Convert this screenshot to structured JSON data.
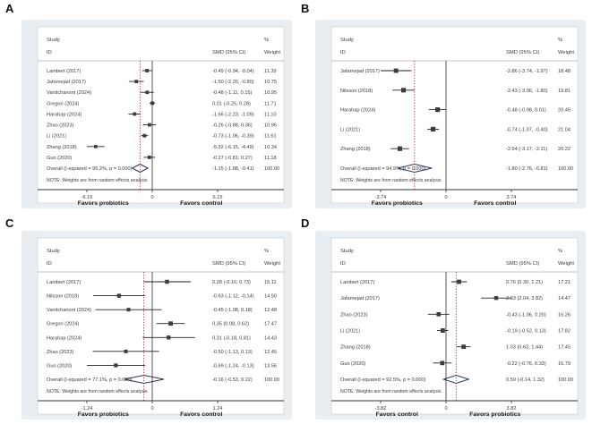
{
  "colors": {
    "panel_bg": "#e9eef2",
    "plot_box_bg": "#ffffff",
    "box_border": "#c9d0d6",
    "axis": "#333333",
    "zero_line": "#444444",
    "ci_line": "#222222",
    "marker": "#3d3d3d",
    "diamond_outline": "#2a3560",
    "overall_dashed_line": "#9f3b3b",
    "text": "#3a3a3a"
  },
  "chart_data": [
    {
      "type": "forest",
      "panel_label": "A",
      "header": {
        "study_line1": "Study",
        "study_line2": "ID",
        "smd_header": "SMD (95% CI)",
        "percent_header": "%",
        "weight_header": "Weight"
      },
      "studies": [
        {
          "id": "Lambert (2017)",
          "smd": -0.49,
          "ci_low": -0.94,
          "ci_high": -0.04,
          "smd_text": "-0.49 (-0.94, -0.04)",
          "weight": "11.39"
        },
        {
          "id": "Jafarnejad (2017)",
          "smd": -1.5,
          "ci_low": -2.2,
          "ci_high": -0.8,
          "smd_text": "-1.50 (-2.20, -0.80)",
          "weight": "10.75"
        },
        {
          "id": "Vanitchanont (2024)",
          "smd": -0.48,
          "ci_low": -1.11,
          "ci_high": 0.15,
          "smd_text": "-0.48 (-1.11, 0.15)",
          "weight": "10.95"
        },
        {
          "id": "Gregori (2024)",
          "smd": 0.01,
          "ci_low": -0.25,
          "ci_high": 0.28,
          "smd_text": "0.01 (-0.25, 0.28)",
          "weight": "11.71"
        },
        {
          "id": "Harahap (2024)",
          "smd": -1.66,
          "ci_low": -2.23,
          "ci_high": -1.09,
          "smd_text": "-1.66 (-2.23, -1.09)",
          "weight": "11.10"
        },
        {
          "id": "Zhao (2023)",
          "smd": -0.26,
          "ci_low": -0.88,
          "ci_high": 0.36,
          "smd_text": "-0.26 (-0.88, 0.36)",
          "weight": "10.96"
        },
        {
          "id": "Li (2021)",
          "smd": -0.73,
          "ci_low": -1.06,
          "ci_high": -0.39,
          "smd_text": "-0.73 (-1.06, -0.39)",
          "weight": "11.61"
        },
        {
          "id": "Zhang (2018)",
          "smd": -5.32,
          "ci_low": -6.15,
          "ci_high": -4.49,
          "smd_text": "-5.32 (-6.15, -4.49)",
          "weight": "10.34"
        },
        {
          "id": "Guo (2020)",
          "smd": -0.27,
          "ci_low": -0.81,
          "ci_high": 0.27,
          "smd_text": "-0.27 (-0.81, 0.27)",
          "weight": "11.18"
        }
      ],
      "overall": {
        "id": "Overall (I-squared = 95.2%, p = 0.000)",
        "smd": -1.15,
        "ci_low": -1.88,
        "ci_high": -0.41,
        "smd_text": "-1.15 (-1.88, -0.41)",
        "weight": "100.00"
      },
      "note": "NOTE: Weights are from random effects analysis",
      "x_axis": {
        "ticks": [
          -6.15,
          0,
          6.15
        ],
        "tick_labels": [
          "-6.15",
          "0",
          "6.15"
        ]
      },
      "footer": {
        "left_label": "Favors probiotics",
        "right_label": "Favors control"
      }
    },
    {
      "type": "forest",
      "panel_label": "B",
      "header": {
        "study_line1": "Study",
        "study_line2": "ID",
        "smd_header": "SMD (95% CI)",
        "percent_header": "%",
        "weight_header": "Weight"
      },
      "studies": [
        {
          "id": "Jafarnejad (2017)",
          "smd": -2.86,
          "ci_low": -3.74,
          "ci_high": -1.97,
          "smd_text": "-2.86 (-3.74, -1.97)",
          "weight": "18.48"
        },
        {
          "id": "Nilsson (2018)",
          "smd": -2.43,
          "ci_low": -3.06,
          "ci_high": -1.8,
          "smd_text": "-2.43 (-3.06, -1.80)",
          "weight": "19.81"
        },
        {
          "id": "Harahap (2024)",
          "smd": -0.48,
          "ci_low": -0.98,
          "ci_high": 0.01,
          "smd_text": "-0.48 (-0.98, 0.01)",
          "weight": "20.45"
        },
        {
          "id": "Li (2021)",
          "smd": -0.74,
          "ci_low": -1.07,
          "ci_high": -0.4,
          "smd_text": "-0.74 (-1.07, -0.40)",
          "weight": "21.04"
        },
        {
          "id": "Zhang (2018)",
          "smd": -2.64,
          "ci_low": -3.17,
          "ci_high": -2.11,
          "smd_text": "-2.64 (-3.17, -2.11)",
          "weight": "20.22"
        }
      ],
      "overall": {
        "id": "Overall (I-squared = 94.9%, p = 0.000)",
        "smd": -1.8,
        "ci_low": -2.76,
        "ci_high": -0.81,
        "smd_text": "-1.80 (-2.76, -0.81)",
        "weight": "100.00"
      },
      "note": "NOTE: Weights are from random effects analysis",
      "x_axis": {
        "ticks": [
          -3.74,
          0,
          3.74
        ],
        "tick_labels": [
          "-3.74",
          "0",
          "3.74"
        ]
      },
      "footer": {
        "left_label": "Favors probiotics",
        "right_label": "Favors control"
      }
    },
    {
      "type": "forest",
      "panel_label": "C",
      "header": {
        "study_line1": "Study",
        "study_line2": "ID",
        "smd_header": "SMD (95% CI)",
        "percent_header": "%",
        "weight_header": "Weight"
      },
      "studies": [
        {
          "id": "Lambert (2017)",
          "smd": 0.28,
          "ci_low": -0.16,
          "ci_high": 0.73,
          "smd_text": "0.28 (-0.16, 0.73)",
          "weight": "15.11"
        },
        {
          "id": "Nilsson (2018)",
          "smd": -0.63,
          "ci_low": -1.12,
          "ci_high": -0.14,
          "smd_text": "-0.63 (-1.12, -0.14)",
          "weight": "14.50"
        },
        {
          "id": "Vanitchanont (2024)",
          "smd": -0.45,
          "ci_low": -1.08,
          "ci_high": 0.18,
          "smd_text": "-0.45 (-1.08, 0.18)",
          "weight": "12.48"
        },
        {
          "id": "Gregori (2024)",
          "smd": 0.35,
          "ci_low": 0.08,
          "ci_high": 0.62,
          "smd_text": "0.35 (0.08, 0.62)",
          "weight": "17.47"
        },
        {
          "id": "Harahap (2024)",
          "smd": 0.31,
          "ci_low": -0.18,
          "ci_high": 0.81,
          "smd_text": "0.31 (-0.18, 0.81)",
          "weight": "14.43"
        },
        {
          "id": "Zhao (2023)",
          "smd": -0.5,
          "ci_low": -1.13,
          "ci_high": 0.13,
          "smd_text": "-0.50 (-1.13, 0.13)",
          "weight": "12.45"
        },
        {
          "id": "Guo (2020)",
          "smd": -0.69,
          "ci_low": -1.24,
          "ci_high": -0.13,
          "smd_text": "-0.69 (-1.24, -0.13)",
          "weight": "13.56"
        }
      ],
      "overall": {
        "id": "Overall (I-squared = 77.1%, p = 0.000)",
        "smd": -0.16,
        "ci_low": -0.53,
        "ci_high": 0.22,
        "smd_text": "-0.16 (-0.53, 0.22)",
        "weight": "100.00"
      },
      "note": "NOTE: Weights are from random effects analysis",
      "x_axis": {
        "ticks": [
          -1.24,
          0,
          1.24
        ],
        "tick_labels": [
          "-1.24",
          "0",
          "1.24"
        ]
      },
      "footer": {
        "left_label": "Favors probiotics",
        "right_label": "Favors control"
      }
    },
    {
      "type": "forest",
      "panel_label": "D",
      "header": {
        "study_line1": "Study",
        "study_line2": "ID",
        "smd_header": "SMD (95% CI)",
        "percent_header": "%",
        "weight_header": "Weight"
      },
      "studies": [
        {
          "id": "Lambert (2017)",
          "smd": 0.76,
          "ci_low": 0.3,
          "ci_high": 1.21,
          "smd_text": "0.76 (0.30, 1.21)",
          "weight": "17.21"
        },
        {
          "id": "Jafarnejad (2017)",
          "smd": 2.93,
          "ci_low": 2.04,
          "ci_high": 3.82,
          "smd_text": "2.93 (2.04, 3.82)",
          "weight": "14.47"
        },
        {
          "id": "Zhao (2023)",
          "smd": -0.43,
          "ci_low": -1.06,
          "ci_high": 0.2,
          "smd_text": "-0.43 (-1.06, 0.20)",
          "weight": "16.26"
        },
        {
          "id": "Li (2021)",
          "smd": -0.19,
          "ci_low": -0.52,
          "ci_high": 0.13,
          "smd_text": "-0.19 (-0.52, 0.13)",
          "weight": "17.82"
        },
        {
          "id": "Zhang (2018)",
          "smd": 1.03,
          "ci_low": 0.62,
          "ci_high": 1.44,
          "smd_text": "1.03 (0.62, 1.44)",
          "weight": "17.45"
        },
        {
          "id": "Guo (2020)",
          "smd": -0.22,
          "ci_low": -0.76,
          "ci_high": 0.33,
          "smd_text": "-0.22 (-0.76, 0.33)",
          "weight": "16.79"
        }
      ],
      "overall": {
        "id": "Overall (I-squared = 92.5%, p = 0.000)",
        "smd": 0.59,
        "ci_low": -0.14,
        "ci_high": 1.32,
        "smd_text": "0.59 (-0.14, 1.32)",
        "weight": "100.00"
      },
      "note": "NOTE: Weights are from random effects analysis",
      "x_axis": {
        "ticks": [
          -3.82,
          0,
          3.82
        ],
        "tick_labels": [
          "-3.82",
          "0",
          "3.82"
        ]
      },
      "footer": {
        "left_label": "Favors control",
        "right_label": "Favors probiotics"
      }
    }
  ]
}
